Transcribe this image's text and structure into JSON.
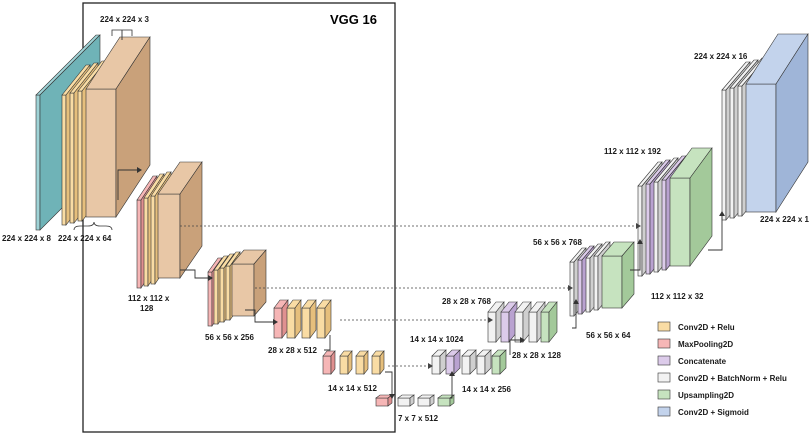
{
  "title": "VGG 16",
  "colors": {
    "conv_relu": "#f9dca4",
    "conv_relu_side": "#e6bf7c",
    "maxpool": "#f6b6b6",
    "maxpool_side": "#e09090",
    "concat": "#dccbea",
    "concat_side": "#b9a2d0",
    "conv_bn": "#f2f2f2",
    "conv_bn_side": "#cfcfcf",
    "upsample": "#c6e3bf",
    "upsample_side": "#a3c99a",
    "sigmoid": "#c3d3ec",
    "sigmoid_side": "#9fb5d8",
    "input": "#9fd3d6",
    "input_side": "#6fb3b7",
    "base_tan": "#e8c7a6",
    "base_tan_side": "#c9a17a",
    "edge": "#333333"
  },
  "labels": {
    "input_in": "224 x 224 x 3",
    "input_8": "224 x 224 x 8",
    "enc1": "224 x 224 x 64",
    "enc2_line1": "112 x 112 x",
    "enc2_line2": "128",
    "enc3": "56 x 56 x 256",
    "enc4": "28 x 28 x 512",
    "enc5": "14 x 14 x 512",
    "bottleneck": "7 x 7 x 512",
    "dec1_top": "14 x 14 x 1024",
    "dec1_bottom": "14 x 14 x  256",
    "dec2_top": "28 x 28 x  768",
    "dec2_right": "28 x 28 x 128",
    "dec3_top": "56 x 56 x  768",
    "dec3_bottom": "56 x 56 x  64",
    "dec4_top": "112 x 112 x  192",
    "dec4_bottom": "112 x 112 x  32",
    "out_top": "224 x 224 x 16",
    "out_right": "224 x 224 x 1"
  },
  "legend": [
    {
      "label": "Conv2D + Relu",
      "color_key": "conv_relu"
    },
    {
      "label": "MaxPooling2D",
      "color_key": "maxpool"
    },
    {
      "label": "Concatenate",
      "color_key": "concat"
    },
    {
      "label": "Conv2D + BatchNorm + Relu",
      "color_key": "conv_bn"
    },
    {
      "label": "Upsampling2D",
      "color_key": "upsample"
    },
    {
      "label": "Conv2D + Sigmoid",
      "color_key": "sigmoid"
    }
  ]
}
